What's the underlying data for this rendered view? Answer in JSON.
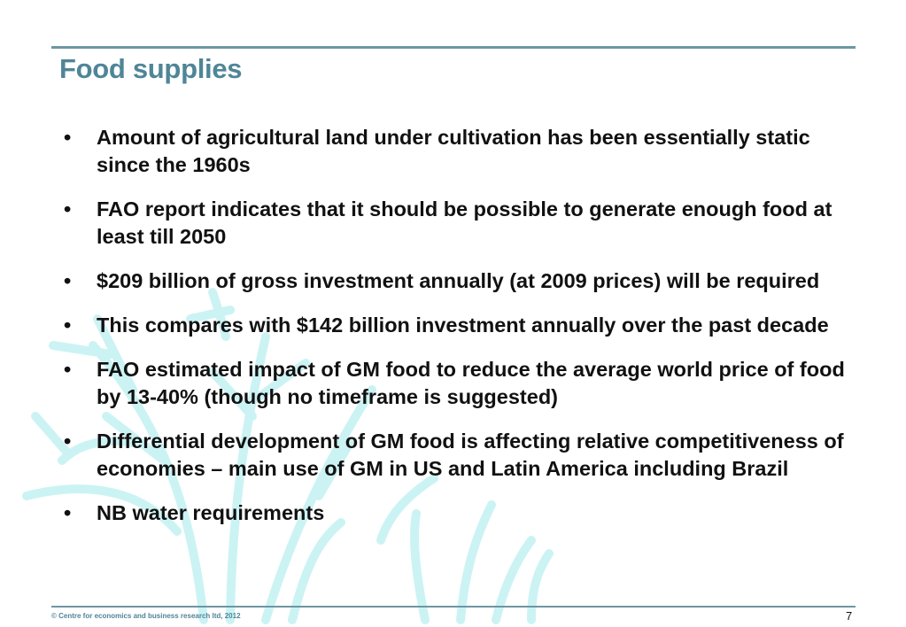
{
  "slide": {
    "title": "Food supplies",
    "bullets": [
      "Amount of agricultural land under cultivation has been essentially static since the 1960s",
      "FAO report indicates that it should be possible to generate enough food at least till 2050",
      "$209 billion of gross investment annually (at 2009 prices) will be required",
      "This compares with $142 billion investment annually over the past decade",
      "FAO estimated impact of GM food to reduce the average world price of food by 13-40% (though no timeframe is suggested)",
      "Differential development of GM food is affecting relative competitiveness of economies – main use of GM in US and Latin America including Brazil",
      "NB water requirements"
    ],
    "bullet_symbol": "•",
    "footer": "© Centre for economics and business research ltd, 2012",
    "page_number": "7"
  },
  "colors": {
    "title": "#4f8597",
    "rule": "#6f96a3",
    "body_text": "#111111",
    "watermark": "#b8eef0"
  }
}
